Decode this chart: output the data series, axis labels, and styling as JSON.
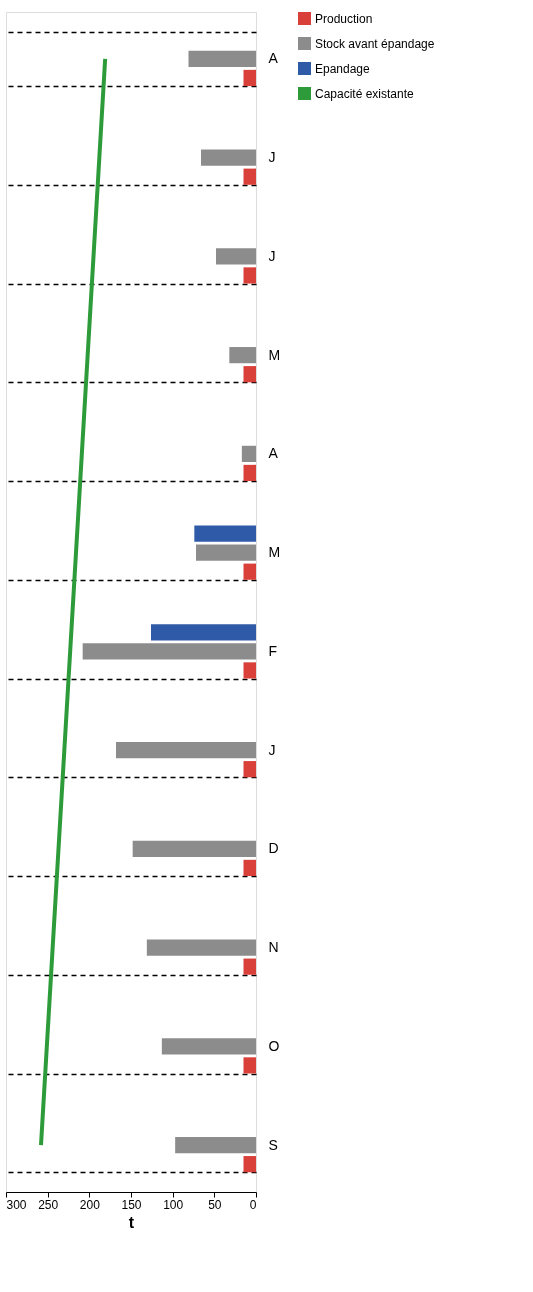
{
  "chart_data": {
    "type": "bar",
    "orientation": "horizontal",
    "xlabel": "t",
    "categories": [
      "A",
      "J",
      "J",
      "M",
      "A",
      "M",
      "F",
      "J",
      "D",
      "N",
      "O",
      "S"
    ],
    "series": [
      {
        "name": "Production",
        "color": "#d9403a",
        "values": [
          15,
          15,
          15,
          15,
          15,
          15,
          15,
          15,
          15,
          15,
          15,
          15
        ]
      },
      {
        "name": "Stock avant épandage",
        "color": "#8c8c8c",
        "values": [
          81,
          66,
          48,
          32,
          17,
          72,
          208,
          168,
          148,
          131,
          113,
          97
        ]
      },
      {
        "name": "Epandage",
        "color": "#2f5aa8",
        "values": [
          null,
          null,
          null,
          null,
          null,
          74,
          126,
          null,
          null,
          null,
          null,
          null
        ]
      },
      {
        "name": "Capacité existante",
        "type": "line",
        "color": "#2e9b3a",
        "values": [
          181,
          188,
          195,
          202,
          209,
          216,
          223,
          230,
          237,
          244,
          251,
          258
        ]
      }
    ],
    "xlim": [
      300,
      0
    ],
    "xticks": [
      0,
      50,
      100,
      150,
      200,
      250,
      300
    ],
    "grid": "y",
    "legend": "right"
  }
}
